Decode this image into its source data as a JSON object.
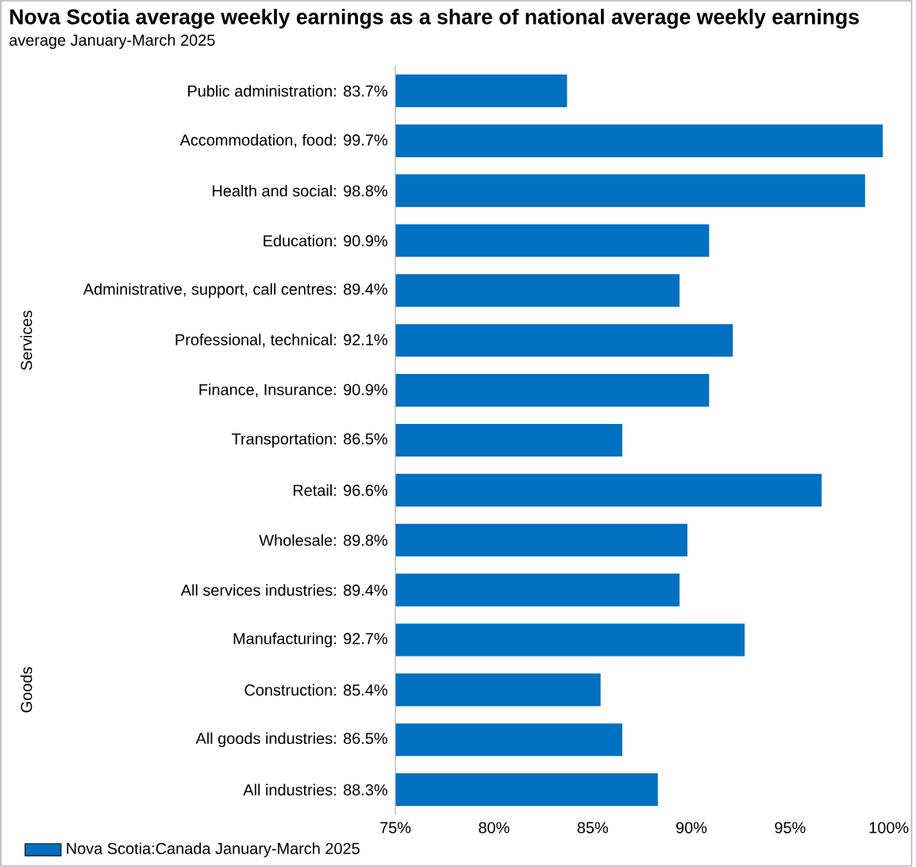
{
  "chart_data": {
    "type": "bar",
    "orientation": "horizontal",
    "title": "Nova Scotia average weekly earnings  as a share of national average weekly earnings",
    "subtitle": "average January-March 2025",
    "categories": [
      "Public administration:  83.7%",
      "Accommodation, food:  99.7%",
      "Health and social:  98.8%",
      "Education:  90.9%",
      "Administrative, support, call centres:  89.4%",
      "Professional, technical:  92.1%",
      "Finance, Insurance:  90.9%",
      "Transportation:  86.5%",
      "Retail:  96.6%",
      "Wholesale:  89.8%",
      "All services industries:  89.4%",
      "Manufacturing:  92.7%",
      "Construction:  85.4%",
      "All goods industries:  86.5%",
      "All industries:  88.3%"
    ],
    "series": [
      {
        "name": "Nova Scotia:Canada January-March 2025",
        "color": "#0070c0",
        "values": [
          83.7,
          99.7,
          98.8,
          90.9,
          89.4,
          92.1,
          90.9,
          86.5,
          96.6,
          89.8,
          89.4,
          92.7,
          85.4,
          86.5,
          88.3
        ]
      }
    ],
    "xlim": [
      75,
      100
    ],
    "xticks": [
      {
        "value": 75,
        "label": "75%"
      },
      {
        "value": 80,
        "label": "80%"
      },
      {
        "value": 85,
        "label": "85%"
      },
      {
        "value": 90,
        "label": "90%"
      },
      {
        "value": 95,
        "label": "95%"
      },
      {
        "value": 100,
        "label": "100%"
      }
    ],
    "annotations": [
      "Services",
      "Goods"
    ],
    "legend": "bottom",
    "grid": false
  }
}
